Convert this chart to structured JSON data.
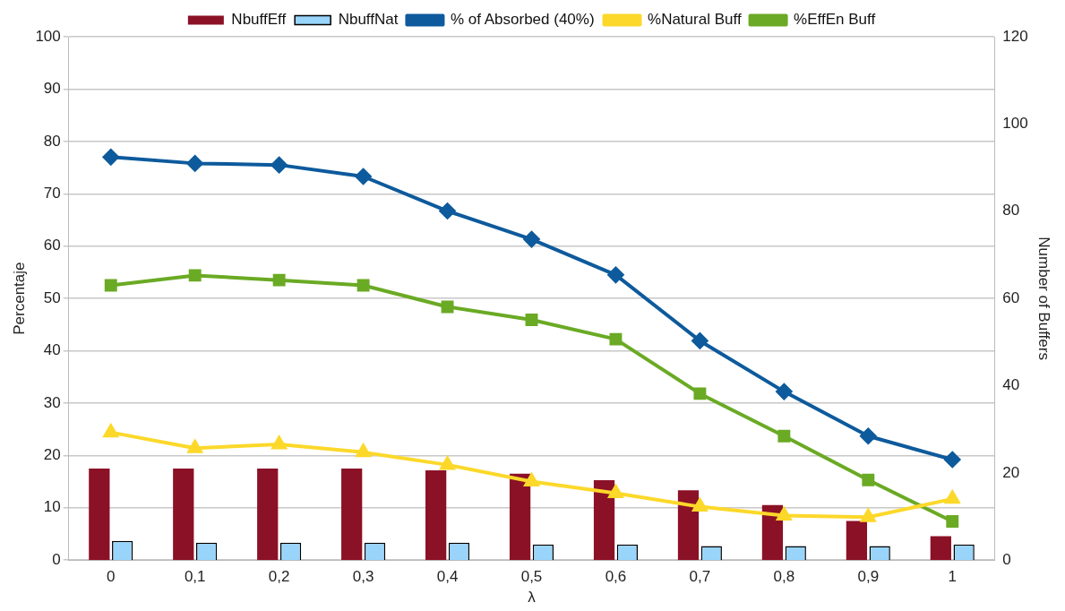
{
  "chart_data": {
    "type": "line",
    "xlabel": "λ",
    "ylabel": "Percentaje",
    "y2label": "Number of Buffers",
    "categories": [
      "0",
      "0,1",
      "0,2",
      "0,3",
      "0,4",
      "0,5",
      "0,6",
      "0,7",
      "0,8",
      "0,9",
      "1"
    ],
    "series": [
      {
        "name": "NbuffEff",
        "type": "bar",
        "axis": "y2",
        "color": "#8b1127",
        "values": [
          21,
          21,
          21,
          21,
          20.6,
          19.8,
          18.3,
          16,
          12.6,
          9,
          5.5
        ]
      },
      {
        "name": "NbuffNat",
        "type": "bar",
        "axis": "y2",
        "color": "#99d5fb",
        "values": [
          4.4,
          4,
          4,
          4,
          4,
          3.6,
          3.6,
          3.2,
          3.2,
          3.2,
          3.6
        ]
      },
      {
        "name": "% of Absorbed (40%)",
        "marker": "diamond",
        "color": "#0d5a9c",
        "values": [
          77,
          75.8,
          75.5,
          73.3,
          66.7,
          61.3,
          54.5,
          41.9,
          32.2,
          23.7,
          19.2
        ]
      },
      {
        "name": "%Natural Buff",
        "marker": "triangle",
        "color": "#fcd82a",
        "values": [
          24.4,
          21.4,
          22.1,
          20.6,
          18.2,
          15,
          12.8,
          10.2,
          8.5,
          8.2,
          11.7
        ]
      },
      {
        "name": "%EffEn Buff",
        "marker": "square",
        "color": "#6aaa24",
        "values": [
          52.5,
          54.4,
          53.5,
          52.5,
          48.4,
          45.9,
          42.2,
          31.8,
          23.7,
          15.3,
          7.4
        ]
      }
    ],
    "ylim": [
      0,
      100
    ],
    "yticks": [
      0,
      10,
      20,
      30,
      40,
      50,
      60,
      70,
      80,
      90,
      100
    ],
    "y2lim": [
      0,
      120
    ],
    "y2ticks": [
      0,
      20,
      40,
      60,
      80,
      100,
      120
    ],
    "grid": "y",
    "legend": "top"
  }
}
